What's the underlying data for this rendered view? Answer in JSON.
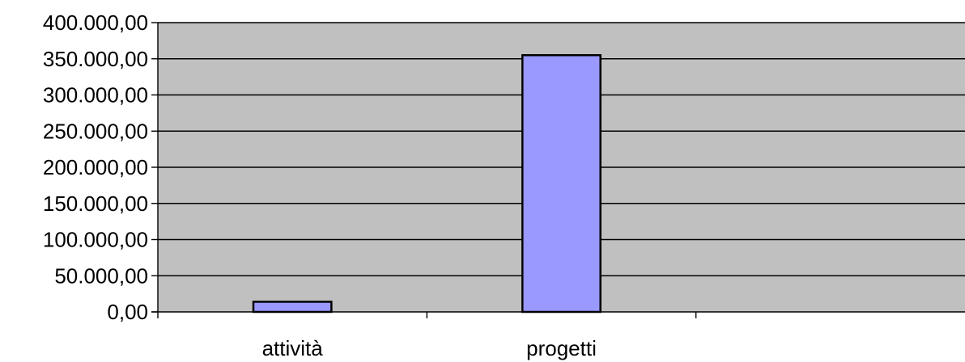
{
  "chart_data": {
    "type": "bar",
    "categories": [
      "attività",
      "progetti",
      ""
    ],
    "values": [
      14000,
      355000,
      null
    ],
    "ylim": [
      0,
      400000
    ],
    "yticks": [
      {
        "value": 0,
        "label": "0,00"
      },
      {
        "value": 50000,
        "label": "50.000,00"
      },
      {
        "value": 100000,
        "label": "100.000,00"
      },
      {
        "value": 150000,
        "label": "150.000,00"
      },
      {
        "value": 200000,
        "label": "200.000,00"
      },
      {
        "value": 250000,
        "label": "250.000,00"
      },
      {
        "value": 300000,
        "label": "300.000,00"
      },
      {
        "value": 350000,
        "label": "350.000,00"
      },
      {
        "value": 400000,
        "label": "400.000,00"
      }
    ],
    "grid": true,
    "legend": "none",
    "colors": {
      "plot_background": "#c0c0c0",
      "bar_fill": "#9999ff",
      "bar_stroke": "#000000",
      "gridline": "#000000"
    }
  }
}
